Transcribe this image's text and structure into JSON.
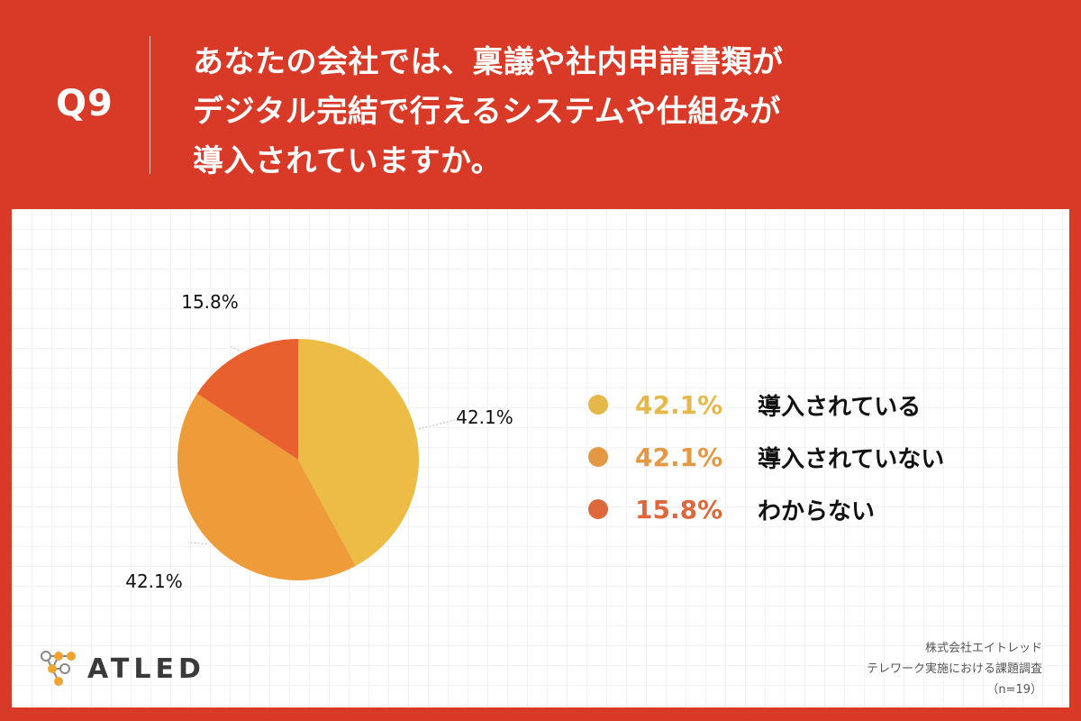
{
  "header": {
    "question_number": "Q9",
    "question_lines": [
      "あなたの会社では、稟議や社内申請書類が",
      "デジタル完結で行えるシステムや仕組みが",
      "導入されていますか。"
    ]
  },
  "colors": {
    "background": "#d93a27",
    "slice_1": "#edbc45",
    "slice_2": "#ee9b3a",
    "slice_3": "#e8602d"
  },
  "chart_data": {
    "type": "pie",
    "start": "12 o'clock, clockwise",
    "slices": [
      {
        "label": "導入されている",
        "value": 42.1,
        "value_label": "42.1%",
        "color": "#edbc45",
        "legend_color": "#e6b84a"
      },
      {
        "label": "導入されていない",
        "value": 42.1,
        "value_label": "42.1%",
        "color": "#ee9b3a",
        "legend_color": "#e49843"
      },
      {
        "label": "わからない",
        "value": 15.8,
        "value_label": "15.8%",
        "color": "#e8602d",
        "legend_color": "#de683c"
      }
    ],
    "legend_position": "right"
  },
  "brand": {
    "name": "ATLED",
    "logo_icon": "molecule-nodes-icon"
  },
  "credits": {
    "company": "株式会社エイトレッド",
    "survey": "テレワーク実施における課題調査",
    "sample": "（n=19）"
  }
}
